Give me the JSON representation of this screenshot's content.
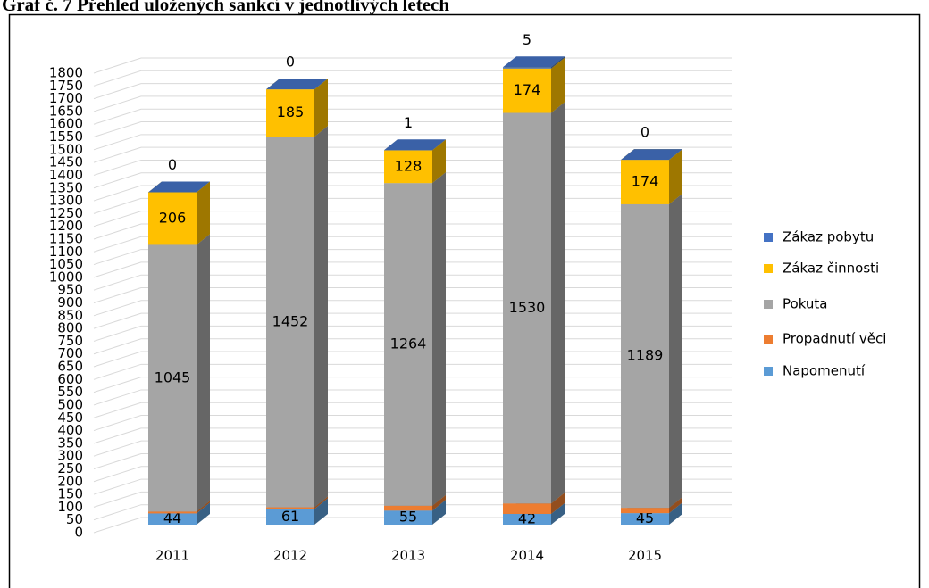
{
  "chart_data": {
    "type": "bar3d_stacked",
    "title": "Graf č. 7 Přehled uložených sankcí v jednotlivých letech",
    "categories": [
      "2011",
      "2012",
      "2013",
      "2014",
      "2015"
    ],
    "series": [
      {
        "name": "Napomenutí",
        "color": "#5b9bd5",
        "values": [
          44,
          61,
          55,
          42,
          45
        ]
      },
      {
        "name": "Propadnutí věci",
        "color": "#ed7d31",
        "values": [
          7,
          7,
          19,
          41,
          21
        ]
      },
      {
        "name": "Pokuta",
        "color": "#a5a5a5",
        "values": [
          1045,
          1452,
          1264,
          1530,
          1189
        ]
      },
      {
        "name": "Zákaz činnosti",
        "color": "#ffc000",
        "values": [
          206,
          185,
          128,
          174,
          174
        ]
      },
      {
        "name": "Zákaz pobytu",
        "color": "#4472c4",
        "values": [
          0,
          0,
          1,
          5,
          0
        ]
      }
    ],
    "ylim": [
      0,
      1800
    ],
    "yticks": [
      0,
      50,
      100,
      150,
      200,
      250,
      300,
      350,
      400,
      450,
      500,
      550,
      600,
      650,
      700,
      750,
      800,
      850,
      900,
      950,
      1000,
      1050,
      1100,
      1150,
      1200,
      1250,
      1300,
      1350,
      1400,
      1450,
      1500,
      1550,
      1600,
      1650,
      1700,
      1750,
      1800
    ],
    "grid": true,
    "legend": "right"
  }
}
